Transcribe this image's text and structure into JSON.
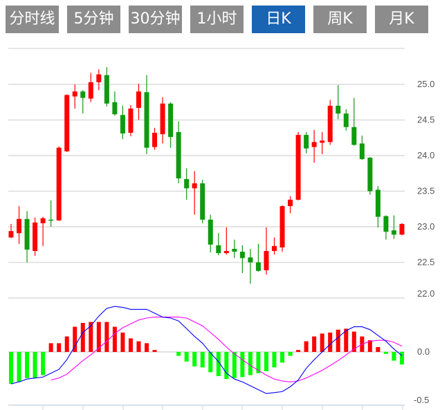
{
  "tabs": [
    {
      "label": "分时线",
      "active": false
    },
    {
      "label": "5分钟",
      "active": false
    },
    {
      "label": "30分钟",
      "active": false
    },
    {
      "label": "1小时",
      "active": false
    },
    {
      "label": "日K",
      "active": true
    },
    {
      "label": "周K",
      "active": false
    },
    {
      "label": "月K",
      "active": false
    }
  ],
  "colors": {
    "tab_bg": "#8c8c8c",
    "tab_active": "#1a64b4",
    "up": "#ff0000",
    "down": "#0f9a0f",
    "hist_up": "#ff0000",
    "hist_down": "#00ff00",
    "dif": "#0000ff",
    "dea": "#ff00ff"
  },
  "chart_data": [
    {
      "type": "candlestick",
      "ylim": [
        22.0,
        25.5
      ],
      "y_ticks": [
        "25.0",
        "24.5",
        "24.0",
        "23.5",
        "23.0",
        "22.5",
        "22.0"
      ],
      "y_tick_values": [
        25.0,
        24.5,
        24.0,
        23.5,
        23.0,
        22.5,
        22.0
      ],
      "grid": true,
      "ohlc": [
        [
          22.85,
          23.04,
          22.84,
          22.94
        ],
        [
          22.91,
          23.29,
          22.76,
          23.11
        ],
        [
          23.11,
          23.22,
          22.5,
          22.68
        ],
        [
          22.66,
          23.13,
          22.59,
          23.06
        ],
        [
          23.05,
          23.14,
          22.73,
          23.12
        ],
        [
          23.1,
          23.37,
          23.0,
          23.09
        ],
        [
          23.09,
          24.13,
          23.08,
          24.11
        ],
        [
          24.06,
          24.86,
          24.05,
          24.85
        ],
        [
          24.83,
          25.0,
          24.66,
          24.9
        ],
        [
          24.9,
          24.92,
          24.59,
          24.81
        ],
        [
          24.8,
          25.16,
          24.75,
          25.03
        ],
        [
          25.03,
          25.21,
          24.92,
          25.14
        ],
        [
          25.13,
          25.24,
          24.69,
          24.73
        ],
        [
          24.75,
          24.9,
          24.56,
          24.58
        ],
        [
          24.57,
          24.7,
          24.23,
          24.31
        ],
        [
          24.32,
          24.71,
          24.27,
          24.66
        ],
        [
          24.67,
          25.01,
          24.5,
          24.9
        ],
        [
          24.89,
          25.13,
          24.02,
          24.11
        ],
        [
          24.12,
          24.39,
          24.08,
          24.32
        ],
        [
          24.3,
          24.82,
          24.17,
          24.73
        ],
        [
          24.73,
          24.75,
          24.11,
          24.26
        ],
        [
          24.33,
          24.48,
          23.61,
          23.68
        ],
        [
          23.67,
          23.82,
          23.38,
          23.54
        ],
        [
          23.54,
          23.78,
          23.17,
          23.61
        ],
        [
          23.61,
          23.66,
          23.05,
          23.1
        ],
        [
          23.1,
          23.17,
          22.64,
          22.75
        ],
        [
          22.74,
          22.91,
          22.6,
          22.63
        ],
        [
          22.63,
          22.99,
          22.61,
          22.66
        ],
        [
          22.69,
          22.82,
          22.56,
          22.65
        ],
        [
          22.65,
          22.74,
          22.35,
          22.56
        ],
        [
          22.57,
          22.69,
          22.2,
          22.5
        ],
        [
          22.5,
          22.76,
          22.37,
          22.38
        ],
        [
          22.39,
          22.99,
          22.33,
          22.66
        ],
        [
          22.66,
          22.85,
          22.61,
          22.73
        ],
        [
          22.71,
          23.3,
          22.65,
          23.29
        ],
        [
          23.29,
          23.43,
          23.19,
          23.38
        ],
        [
          23.38,
          24.33,
          23.37,
          24.29
        ],
        [
          24.29,
          24.33,
          24.03,
          24.1
        ],
        [
          24.12,
          24.36,
          23.9,
          24.19
        ],
        [
          24.18,
          24.33,
          24.02,
          24.21
        ],
        [
          24.19,
          24.78,
          24.15,
          24.7
        ],
        [
          24.7,
          24.99,
          24.51,
          24.59
        ],
        [
          24.59,
          24.65,
          24.35,
          24.4
        ],
        [
          24.4,
          24.81,
          24.14,
          24.15
        ],
        [
          24.17,
          24.28,
          23.94,
          23.95
        ],
        [
          23.97,
          23.98,
          23.45,
          23.5
        ],
        [
          23.52,
          23.57,
          22.99,
          23.14
        ],
        [
          23.15,
          23.16,
          22.82,
          22.93
        ],
        [
          22.95,
          23.16,
          22.83,
          22.89
        ],
        [
          22.89,
          23.05,
          22.88,
          23.04
        ]
      ]
    },
    {
      "type": "macd",
      "ylim": [
        -0.55,
        0.56
      ],
      "y_ticks": [
        "0.0",
        "-0.5"
      ],
      "y_tick_values": [
        0.0,
        -0.5
      ],
      "histogram": [
        -0.33,
        -0.31,
        -0.27,
        -0.27,
        -0.24,
        0.09,
        0.09,
        0.16,
        0.26,
        0.3,
        0.31,
        0.31,
        0.31,
        0.26,
        0.2,
        0.14,
        0.11,
        0.09,
        0.02,
        0,
        0,
        -0.04,
        -0.1,
        -0.15,
        -0.16,
        -0.21,
        -0.25,
        -0.28,
        -0.27,
        -0.26,
        -0.24,
        -0.22,
        -0.2,
        -0.16,
        -0.11,
        -0.04,
        0.02,
        0.11,
        0.16,
        0.19,
        0.2,
        0.23,
        0.24,
        0.21,
        0.16,
        0.12,
        0.05,
        -0.02,
        -0.09,
        -0.13
      ],
      "dif": [
        -0.33,
        -0.31,
        -0.28,
        -0.27,
        -0.26,
        -0.22,
        -0.18,
        -0.08,
        0.06,
        0.2,
        0.27,
        0.37,
        0.45,
        0.47,
        0.46,
        0.44,
        0.44,
        0.44,
        0.4,
        0.36,
        0.35,
        0.32,
        0.24,
        0.16,
        0.09,
        -0.01,
        -0.1,
        -0.22,
        -0.28,
        -0.31,
        -0.35,
        -0.39,
        -0.43,
        -0.42,
        -0.41,
        -0.36,
        -0.29,
        -0.17,
        -0.08,
        0.0,
        0.08,
        0.15,
        0.22,
        0.26,
        0.26,
        0.23,
        0.17,
        0.11,
        0.03,
        -0.04
      ],
      "dea": [
        null,
        null,
        null,
        null,
        null,
        -0.29,
        -0.27,
        -0.23,
        -0.16,
        -0.09,
        -0.03,
        0.04,
        0.11,
        0.19,
        0.25,
        0.29,
        0.33,
        0.35,
        0.36,
        0.36,
        0.36,
        0.36,
        0.35,
        0.31,
        0.27,
        0.2,
        0.13,
        0.05,
        -0.02,
        -0.08,
        -0.14,
        -0.19,
        -0.24,
        -0.28,
        -0.3,
        -0.31,
        -0.3,
        -0.27,
        -0.23,
        -0.19,
        -0.14,
        -0.09,
        -0.03,
        0.03,
        0.08,
        0.11,
        0.12,
        0.12,
        0.1,
        0.06
      ]
    }
  ]
}
